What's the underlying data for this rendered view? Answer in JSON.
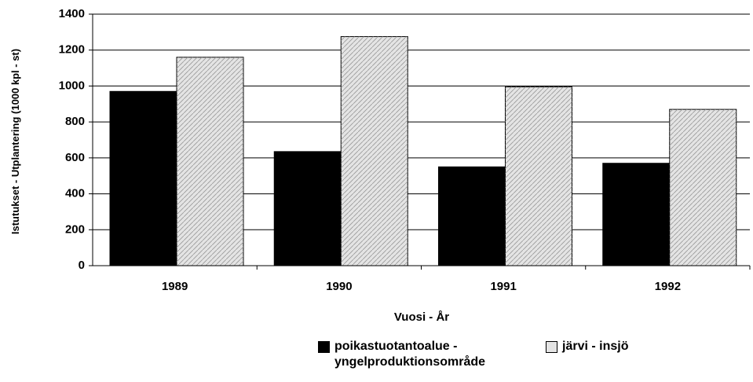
{
  "chart_data": {
    "type": "bar",
    "categories": [
      "1989",
      "1990",
      "1991",
      "1992"
    ],
    "series": [
      {
        "name": "poikastuotantoalue - yngelproduktionsområde",
        "color": "#000000",
        "values": [
          970,
          635,
          550,
          570
        ]
      },
      {
        "name": "järvi - insjö",
        "color": "#e4e4e4",
        "values": [
          1160,
          1275,
          995,
          870
        ]
      }
    ],
    "xlabel": "Vuosi - År",
    "ylabel": "Istutukset - Utplantering (1000 kpl - st)",
    "ylim": [
      0,
      1400
    ],
    "yticks": [
      0,
      200,
      400,
      600,
      800,
      1000,
      1200,
      1400
    ],
    "grid": true,
    "legend": "bottom"
  }
}
